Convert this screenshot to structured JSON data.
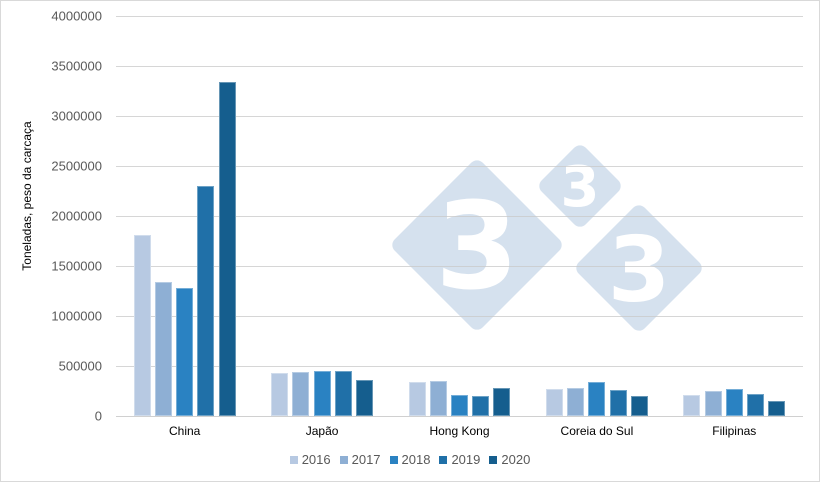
{
  "chart_data": {
    "type": "bar",
    "title": "",
    "xlabel": "",
    "ylabel": "Toneladas, peso da carcaça",
    "ylim": [
      0,
      4000000
    ],
    "yticks": [
      0,
      500000,
      1000000,
      1500000,
      2000000,
      2500000,
      3000000,
      3500000,
      4000000
    ],
    "ytick_labels": [
      "0",
      "500000",
      "1000000",
      "1500000",
      "2000000",
      "2500000",
      "3000000",
      "3500000",
      "4000000"
    ],
    "grid": true,
    "legend_position": "bottom",
    "categories": [
      "China",
      "Japão",
      "Hong Kong",
      "Coreia do Sul",
      "Filipinas"
    ],
    "series": [
      {
        "name": "2016",
        "color": "#b7c9e2",
        "values": [
          1810000,
          430000,
          340000,
          270000,
          215000
        ]
      },
      {
        "name": "2017",
        "color": "#8eafd4",
        "values": [
          1340000,
          440000,
          355000,
          285000,
          250000
        ]
      },
      {
        "name": "2018",
        "color": "#2a82c2",
        "values": [
          1280000,
          455000,
          215000,
          345000,
          275000
        ]
      },
      {
        "name": "2019",
        "color": "#2070a8",
        "values": [
          2300000,
          455000,
          205000,
          265000,
          220000
        ]
      },
      {
        "name": "2020",
        "color": "#155e8e",
        "values": [
          3340000,
          360000,
          285000,
          200000,
          155000
        ]
      }
    ]
  },
  "watermark": {
    "label": "333",
    "color": "#d5e1ee",
    "digit": "3"
  }
}
